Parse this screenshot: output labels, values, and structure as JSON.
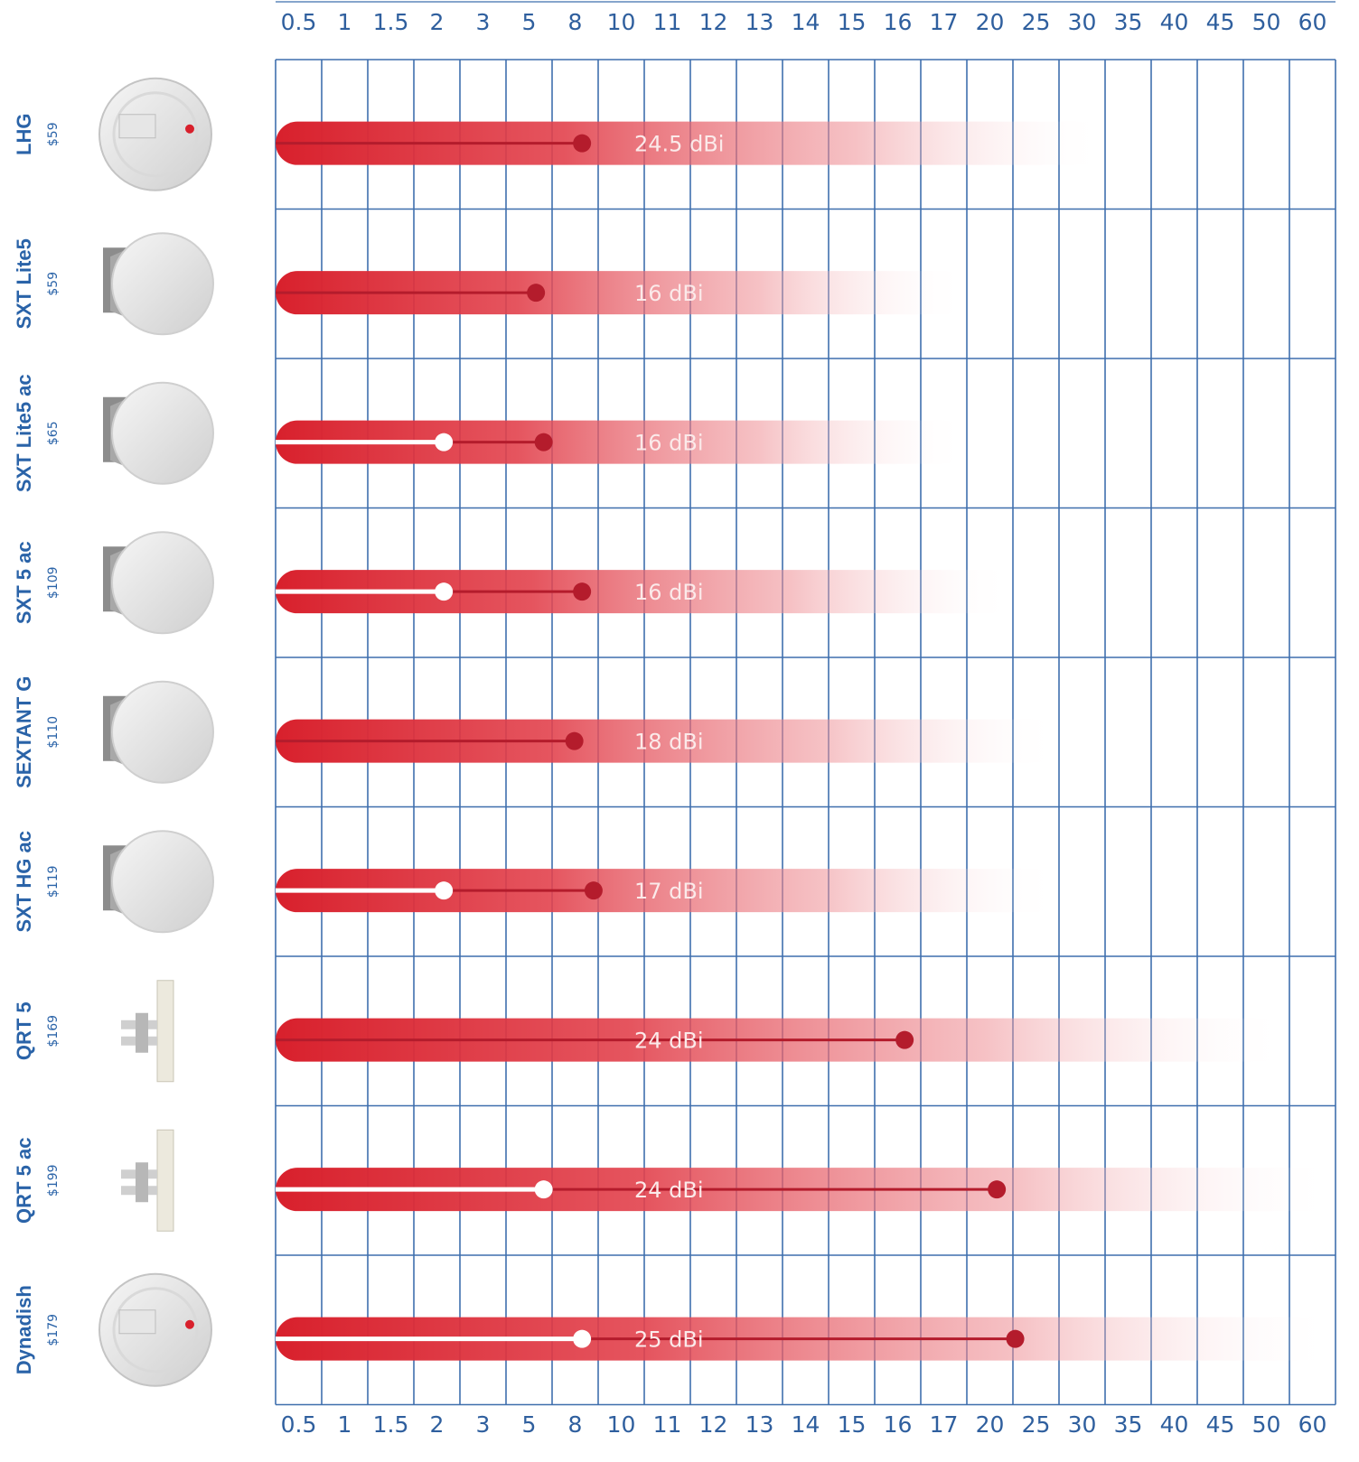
{
  "chart_data": {
    "type": "bar",
    "x_ticks": [
      "0.5",
      "1",
      "1.5",
      "2",
      "3",
      "5",
      "8",
      "10",
      "11",
      "12",
      "13",
      "14",
      "15",
      "16",
      "17",
      "20",
      "25",
      "30",
      "35",
      "40",
      "45",
      "50",
      "60"
    ],
    "series": [
      {
        "name": "LHG",
        "price": "$59",
        "gain": "24.5 dBi",
        "potential": "30",
        "dark_marker": "8",
        "white_marker": null,
        "icon": "dish-antenna-icon"
      },
      {
        "name": "SXT Lite5",
        "price": "$59",
        "gain": "16 dBi",
        "potential": "17",
        "dark_marker": "5",
        "white_marker": null,
        "icon": "round-panel-antenna-icon"
      },
      {
        "name": "SXT Lite5 ac",
        "price": "$65",
        "gain": "16 dBi",
        "potential": "17",
        "dark_marker": "5.5",
        "white_marker": "2",
        "icon": "round-panel-antenna-icon"
      },
      {
        "name": "SXT 5 ac",
        "price": "$109",
        "gain": "16 dBi",
        "potential": "20",
        "dark_marker": "8",
        "white_marker": "2",
        "icon": "round-panel-antenna-icon"
      },
      {
        "name": "SEXTANT G",
        "price": "$110",
        "gain": "18 dBi",
        "potential": "25",
        "dark_marker": "7.5",
        "white_marker": null,
        "icon": "round-panel-antenna-icon"
      },
      {
        "name": "SXT HG ac",
        "price": "$119",
        "gain": "17 dBi",
        "potential": "25",
        "dark_marker": "8.5",
        "white_marker": "2",
        "icon": "round-panel-antenna-icon"
      },
      {
        "name": "QRT 5",
        "price": "$169",
        "gain": "24 dBi",
        "potential": "50",
        "dark_marker": "16",
        "white_marker": null,
        "icon": "flat-panel-antenna-icon"
      },
      {
        "name": "QRT 5 ac",
        "price": "$199",
        "gain": "24 dBi",
        "potential": "60",
        "dark_marker": "20",
        "white_marker": "5.5",
        "icon": "flat-panel-antenna-icon"
      },
      {
        "name": "Dynadish",
        "price": "$179",
        "gain": "25 dBi",
        "potential": "60",
        "dark_marker": "22",
        "white_marker": "8",
        "icon": "dish-antenna-icon"
      }
    ],
    "colors": {
      "bar": "#d8202c",
      "marker": "#b41c2c",
      "grid": "#3f6fad",
      "label": "#2a63a8"
    }
  }
}
